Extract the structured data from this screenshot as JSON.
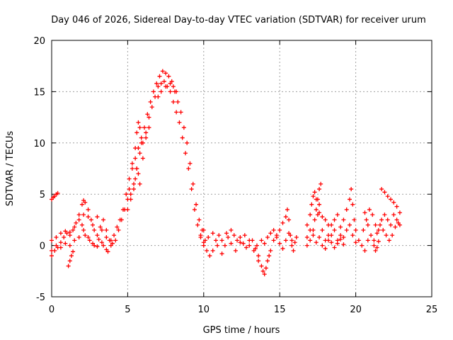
{
  "chart_data": {
    "type": "scatter",
    "title": "Day 046 of 2026, Sidereal Day-to-day VTEC variation (SDTVAR) for receiver urum",
    "xlabel": "GPS time / hours",
    "ylabel": "SDTVAR / TECUs",
    "xlim": [
      0,
      25
    ],
    "ylim": [
      -5,
      20
    ],
    "xticks": [
      0,
      5,
      10,
      15,
      20,
      25
    ],
    "yticks": [
      -5,
      0,
      5,
      10,
      15,
      20
    ],
    "grid": true,
    "marker": "+",
    "colors": {
      "series": "#ff0000",
      "grid": "#a0a0a0",
      "axes": "#000000"
    },
    "series": [
      {
        "name": "SDTVAR",
        "points": [
          [
            0.0,
            4.5
          ],
          [
            0.1,
            4.7
          ],
          [
            0.2,
            4.8
          ],
          [
            0.3,
            5.0
          ],
          [
            0.4,
            5.1
          ],
          [
            0.0,
            -1.0
          ],
          [
            0.2,
            -0.5
          ],
          [
            0.4,
            -0.2
          ],
          [
            0.6,
            0.3
          ],
          [
            0.8,
            0.8
          ],
          [
            1.0,
            1.2
          ],
          [
            1.2,
            1.0
          ],
          [
            1.4,
            1.5
          ],
          [
            1.6,
            2.2
          ],
          [
            1.8,
            3.0
          ],
          [
            2.0,
            4.0
          ],
          [
            2.1,
            4.4
          ],
          [
            2.2,
            4.2
          ],
          [
            2.4,
            3.5
          ],
          [
            2.6,
            2.5
          ],
          [
            2.8,
            1.5
          ],
          [
            3.0,
            1.0
          ],
          [
            3.2,
            1.8
          ],
          [
            3.4,
            2.5
          ],
          [
            3.6,
            1.5
          ],
          [
            3.8,
            0.5
          ],
          [
            4.0,
            0.2
          ],
          [
            0.0,
            0.5
          ],
          [
            0.3,
            0.8
          ],
          [
            0.6,
            1.2
          ],
          [
            0.9,
            1.4
          ],
          [
            1.2,
            1.3
          ],
          [
            1.5,
            1.8
          ],
          [
            1.8,
            2.5
          ],
          [
            2.1,
            3.0
          ],
          [
            2.4,
            2.8
          ],
          [
            2.7,
            2.0
          ],
          [
            3.0,
            2.8
          ],
          [
            3.3,
            1.5
          ],
          [
            3.6,
            0.8
          ],
          [
            3.9,
            0.0
          ],
          [
            0.0,
            -0.5
          ],
          [
            0.3,
            0.0
          ],
          [
            0.6,
            -0.2
          ],
          [
            0.9,
            0.2
          ],
          [
            1.2,
            0.0
          ],
          [
            1.5,
            0.5
          ],
          [
            1.8,
            0.8
          ],
          [
            2.1,
            1.5
          ],
          [
            2.4,
            0.8
          ],
          [
            2.7,
            0.2
          ],
          [
            3.0,
            -0.1
          ],
          [
            3.3,
            0.3
          ],
          [
            3.6,
            -0.4
          ],
          [
            1.1,
            -2.0
          ],
          [
            1.2,
            -1.5
          ],
          [
            1.3,
            -1.0
          ],
          [
            1.4,
            -0.6
          ],
          [
            2.0,
            2.0
          ],
          [
            2.2,
            1.0
          ],
          [
            2.5,
            0.5
          ],
          [
            2.8,
            0.0
          ],
          [
            3.1,
            0.6
          ],
          [
            3.4,
            0.0
          ],
          [
            3.7,
            -0.6
          ],
          [
            3.9,
            0.5
          ],
          [
            4.1,
            1.0
          ],
          [
            4.3,
            1.8
          ],
          [
            4.5,
            2.5
          ],
          [
            4.7,
            3.5
          ],
          [
            4.9,
            5.0
          ],
          [
            5.1,
            6.5
          ],
          [
            5.3,
            7.5
          ],
          [
            5.5,
            8.5
          ],
          [
            5.7,
            9.5
          ],
          [
            5.9,
            10.5
          ],
          [
            6.1,
            11.5
          ],
          [
            6.3,
            12.8
          ],
          [
            6.5,
            14.0
          ],
          [
            6.7,
            15.0
          ],
          [
            6.9,
            15.8
          ],
          [
            7.1,
            16.5
          ],
          [
            7.3,
            17.0
          ],
          [
            7.5,
            16.8
          ],
          [
            7.7,
            16.5
          ],
          [
            7.9,
            16.0
          ],
          [
            8.1,
            15.0
          ],
          [
            8.3,
            14.0
          ],
          [
            8.5,
            13.0
          ],
          [
            8.7,
            11.5
          ],
          [
            8.9,
            10.0
          ],
          [
            9.1,
            8.0
          ],
          [
            9.3,
            6.0
          ],
          [
            9.5,
            4.0
          ],
          [
            9.7,
            2.5
          ],
          [
            9.9,
            1.5
          ],
          [
            10.1,
            0.5
          ],
          [
            4.2,
            0.5
          ],
          [
            4.4,
            1.5
          ],
          [
            4.6,
            2.5
          ],
          [
            4.8,
            3.5
          ],
          [
            5.0,
            4.5
          ],
          [
            5.2,
            5.0
          ],
          [
            5.4,
            6.0
          ],
          [
            5.6,
            7.5
          ],
          [
            5.8,
            9.0
          ],
          [
            6.0,
            10.0
          ],
          [
            6.2,
            11.0
          ],
          [
            6.4,
            12.5
          ],
          [
            6.6,
            13.5
          ],
          [
            6.8,
            14.5
          ],
          [
            7.0,
            15.5
          ],
          [
            7.2,
            15.8
          ],
          [
            7.4,
            16.0
          ],
          [
            7.6,
            15.5
          ],
          [
            7.8,
            15.0
          ],
          [
            8.0,
            14.0
          ],
          [
            8.2,
            13.0
          ],
          [
            8.4,
            12.0
          ],
          [
            8.6,
            10.5
          ],
          [
            8.8,
            9.0
          ],
          [
            9.0,
            7.5
          ],
          [
            9.2,
            5.5
          ],
          [
            9.4,
            3.5
          ],
          [
            9.6,
            2.0
          ],
          [
            9.8,
            1.0
          ],
          [
            10.0,
            0.3
          ],
          [
            5.1,
            5.5
          ],
          [
            5.3,
            8.0
          ],
          [
            5.5,
            9.5
          ],
          [
            5.6,
            11.0
          ],
          [
            5.7,
            12.0
          ],
          [
            5.8,
            11.5
          ],
          [
            5.9,
            10.0
          ],
          [
            6.0,
            8.5
          ],
          [
            6.2,
            10.5
          ],
          [
            6.4,
            11.5
          ],
          [
            5.0,
            3.5
          ],
          [
            5.2,
            4.5
          ],
          [
            5.4,
            5.5
          ],
          [
            5.5,
            6.5
          ],
          [
            5.6,
            7.5
          ],
          [
            5.7,
            7.0
          ],
          [
            5.8,
            6.0
          ],
          [
            7.0,
            14.5
          ],
          [
            7.2,
            15.0
          ],
          [
            7.5,
            15.5
          ],
          [
            7.8,
            15.8
          ],
          [
            8.0,
            15.5
          ],
          [
            8.2,
            15.0
          ],
          [
            9.8,
            0.8
          ],
          [
            10.0,
            0.0
          ],
          [
            10.2,
            -0.5
          ],
          [
            10.4,
            -1.0
          ],
          [
            10.6,
            -0.5
          ],
          [
            10.8,
            0.5
          ],
          [
            11.0,
            1.0
          ],
          [
            11.2,
            0.5
          ],
          [
            11.4,
            0.0
          ],
          [
            11.6,
            0.8
          ],
          [
            11.8,
            1.5
          ],
          [
            12.0,
            1.0
          ],
          [
            12.2,
            0.5
          ],
          [
            12.4,
            0.8
          ],
          [
            12.6,
            0.2
          ],
          [
            12.8,
            -0.2
          ],
          [
            13.0,
            0.0
          ],
          [
            13.2,
            0.5
          ],
          [
            13.4,
            -0.3
          ],
          [
            13.6,
            -1.0
          ],
          [
            10.0,
            1.5
          ],
          [
            10.3,
            0.8
          ],
          [
            10.6,
            1.2
          ],
          [
            10.9,
            0.0
          ],
          [
            11.2,
            -0.8
          ],
          [
            11.5,
            1.2
          ],
          [
            11.8,
            0.2
          ],
          [
            12.1,
            -0.5
          ],
          [
            12.4,
            0.3
          ],
          [
            12.7,
            1.0
          ],
          [
            13.0,
            0.5
          ],
          [
            13.3,
            -0.5
          ],
          [
            13.6,
            -1.5
          ],
          [
            13.8,
            -2.0
          ],
          [
            13.9,
            -2.5
          ],
          [
            14.0,
            -2.8
          ],
          [
            14.1,
            -2.2
          ],
          [
            14.2,
            -1.5
          ],
          [
            14.3,
            -1.0
          ],
          [
            14.4,
            -0.5
          ],
          [
            14.6,
            0.5
          ],
          [
            14.8,
            1.0
          ],
          [
            15.0,
            1.5
          ],
          [
            15.2,
            2.2
          ],
          [
            15.4,
            2.8
          ],
          [
            15.5,
            3.5
          ],
          [
            15.6,
            2.5
          ],
          [
            15.7,
            1.0
          ],
          [
            15.8,
            0.0
          ],
          [
            15.9,
            -0.5
          ],
          [
            16.0,
            0.3
          ],
          [
            16.1,
            0.8
          ],
          [
            13.5,
            0.0
          ],
          [
            13.8,
            0.5
          ],
          [
            14.0,
            0.2
          ],
          [
            14.2,
            0.8
          ],
          [
            14.4,
            1.2
          ],
          [
            14.6,
            1.5
          ],
          [
            14.8,
            0.8
          ],
          [
            15.0,
            0.2
          ],
          [
            15.2,
            -0.3
          ],
          [
            15.4,
            0.5
          ],
          [
            15.6,
            1.2
          ],
          [
            15.8,
            0.5
          ],
          [
            16.8,
            0.0
          ],
          [
            17.0,
            0.5
          ],
          [
            17.2,
            1.5
          ],
          [
            17.3,
            2.5
          ],
          [
            17.4,
            3.5
          ],
          [
            17.5,
            4.5
          ],
          [
            17.6,
            5.5
          ],
          [
            17.7,
            6.0
          ],
          [
            17.6,
            4.0
          ],
          [
            17.5,
            3.0
          ],
          [
            17.8,
            1.5
          ],
          [
            18.0,
            0.5
          ],
          [
            18.2,
            1.0
          ],
          [
            18.4,
            2.0
          ],
          [
            18.6,
            1.5
          ],
          [
            18.8,
            0.5
          ],
          [
            19.0,
            1.0
          ],
          [
            19.2,
            2.5
          ],
          [
            19.4,
            3.5
          ],
          [
            19.6,
            4.5
          ],
          [
            19.7,
            5.5
          ],
          [
            19.8,
            4.0
          ],
          [
            19.9,
            2.5
          ],
          [
            20.0,
            1.5
          ],
          [
            20.2,
            0.5
          ],
          [
            20.4,
            0.0
          ],
          [
            20.6,
            -0.5
          ],
          [
            20.8,
            0.5
          ],
          [
            16.8,
            2.0
          ],
          [
            17.0,
            3.0
          ],
          [
            17.1,
            4.0
          ],
          [
            17.2,
            4.8
          ],
          [
            17.3,
            5.2
          ],
          [
            17.4,
            4.5
          ],
          [
            17.6,
            3.2
          ],
          [
            17.8,
            2.8
          ],
          [
            18.0,
            2.5
          ],
          [
            18.2,
            2.0
          ],
          [
            18.4,
            1.0
          ],
          [
            18.6,
            2.5
          ],
          [
            18.8,
            3.0
          ],
          [
            19.0,
            1.8
          ],
          [
            19.2,
            0.8
          ],
          [
            19.4,
            1.5
          ],
          [
            19.6,
            2.0
          ],
          [
            19.8,
            1.0
          ],
          [
            20.0,
            0.3
          ],
          [
            16.8,
            0.8
          ],
          [
            17.0,
            1.5
          ],
          [
            17.2,
            1.0
          ],
          [
            17.4,
            0.3
          ],
          [
            17.6,
            0.8
          ],
          [
            17.8,
            0.0
          ],
          [
            18.0,
            -0.3
          ],
          [
            18.2,
            0.5
          ],
          [
            18.4,
            0.3
          ],
          [
            18.6,
            -0.2
          ],
          [
            18.8,
            0.2
          ],
          [
            19.0,
            0.6
          ],
          [
            19.2,
            0.1
          ],
          [
            20.5,
            1.5
          ],
          [
            20.7,
            2.5
          ],
          [
            20.9,
            3.5
          ],
          [
            21.1,
            3.0
          ],
          [
            21.3,
            2.0
          ],
          [
            21.5,
            1.5
          ],
          [
            21.7,
            2.5
          ],
          [
            21.9,
            3.0
          ],
          [
            22.1,
            2.5
          ],
          [
            22.3,
            2.0
          ],
          [
            22.5,
            3.0
          ],
          [
            22.7,
            2.5
          ],
          [
            22.9,
            2.0
          ],
          [
            20.6,
            3.2
          ],
          [
            20.8,
            2.0
          ],
          [
            21.0,
            1.0
          ],
          [
            21.2,
            0.5
          ],
          [
            21.4,
            1.2
          ],
          [
            21.6,
            2.0
          ],
          [
            21.8,
            1.5
          ],
          [
            22.0,
            1.0
          ],
          [
            22.2,
            0.5
          ],
          [
            22.4,
            1.0
          ],
          [
            22.6,
            1.8
          ],
          [
            22.8,
            2.2
          ],
          [
            21.7,
            5.5
          ],
          [
            21.9,
            5.2
          ],
          [
            22.1,
            4.8
          ],
          [
            22.3,
            4.5
          ],
          [
            22.5,
            4.2
          ],
          [
            22.7,
            3.8
          ],
          [
            22.9,
            3.2
          ],
          [
            21.2,
            0.0
          ],
          [
            21.3,
            -0.5
          ],
          [
            21.4,
            -0.2
          ],
          [
            21.5,
            0.4
          ]
        ]
      }
    ]
  }
}
